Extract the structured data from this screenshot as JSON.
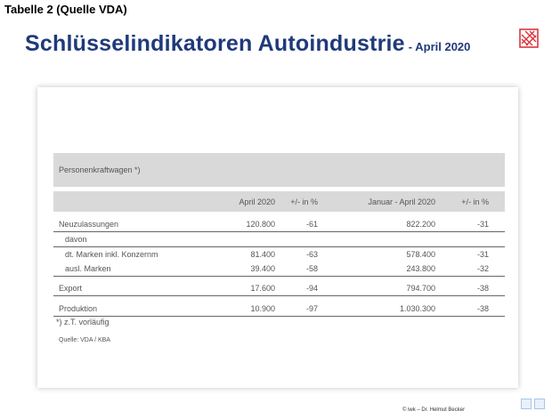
{
  "caption": "Tabelle 2 (Quelle VDA)",
  "title": {
    "main": "Schlüsselindikatoren Autoindustrie",
    "sub": "- April 2020"
  },
  "logo_icon": "vda-logo-icon",
  "table": {
    "section_label": "Personenkraftwagen *)",
    "headers": [
      "April 2020",
      "+/- in %",
      "Januar - April 2020",
      "+/- in %"
    ],
    "rows": [
      {
        "label": "Neuzulassungen",
        "apr": "120.800",
        "pct1": "-61",
        "jan": "822.200",
        "pct2": "-31"
      },
      {
        "label": "davon",
        "apr": "",
        "pct1": "",
        "jan": "",
        "pct2": ""
      },
      {
        "label": "dt. Marken inkl. Konzernm",
        "apr": "81.400",
        "pct1": "-63",
        "jan": "578.400",
        "pct2": "-31"
      },
      {
        "label": "ausl. Marken",
        "apr": "39.400",
        "pct1": "-58",
        "jan": "243.800",
        "pct2": "-32"
      },
      {
        "label": "Export",
        "apr": "17.600",
        "pct1": "-94",
        "jan": "794.700",
        "pct2": "-38"
      },
      {
        "label": "Produktion",
        "apr": "10.900",
        "pct1": "-97",
        "jan": "1.030.300",
        "pct2": "-38"
      }
    ],
    "footnote": "*) z.T. vorläufig",
    "source": "Quelle: VDA / KBA"
  },
  "footer": "© iwk – Dr. Helmut Becker",
  "colors": {
    "title": "#1f3a7a",
    "header_bg": "#d9d9d9",
    "logo": "#d9363e"
  }
}
